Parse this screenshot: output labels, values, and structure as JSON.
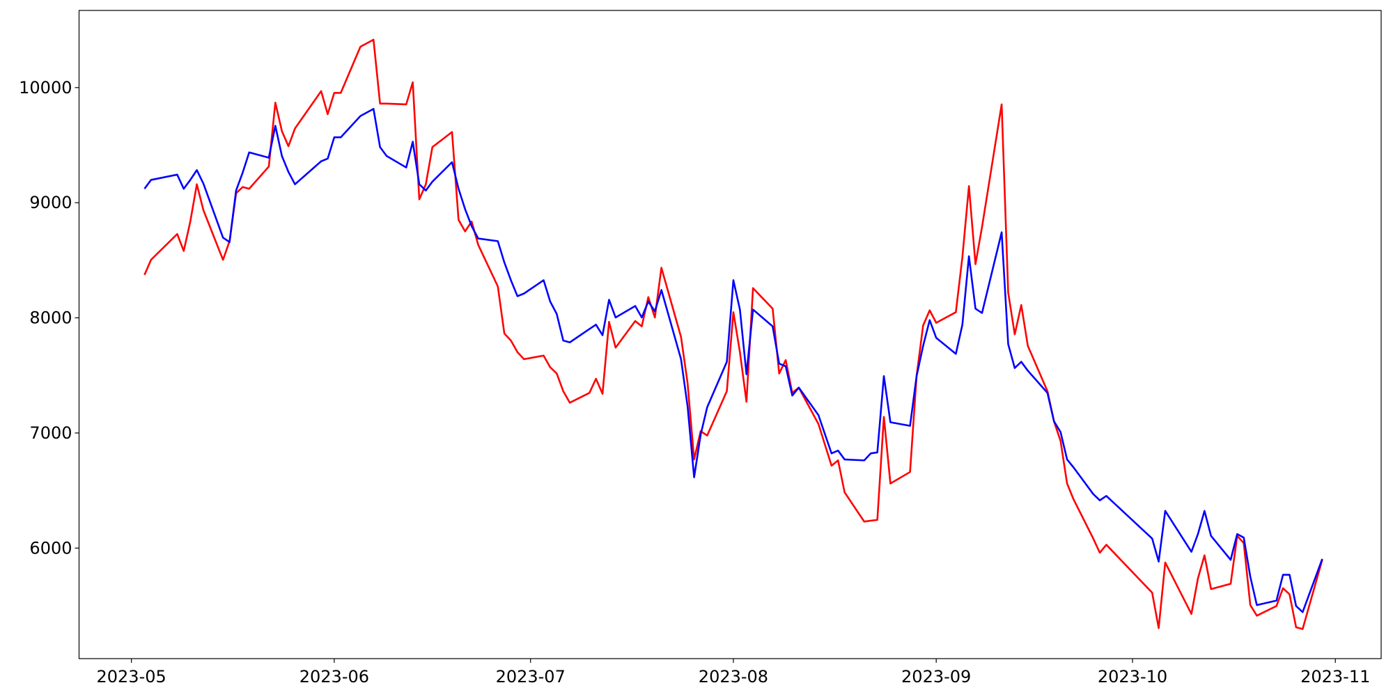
{
  "chart_data": {
    "type": "line",
    "x": [
      "2023-05-03",
      "2023-05-04",
      "2023-05-08",
      "2023-05-09",
      "2023-05-10",
      "2023-05-11",
      "2023-05-12",
      "2023-05-15",
      "2023-05-16",
      "2023-05-17",
      "2023-05-18",
      "2023-05-19",
      "2023-05-22",
      "2023-05-23",
      "2023-05-24",
      "2023-05-25",
      "2023-05-26",
      "2023-05-30",
      "2023-05-31",
      "2023-06-01",
      "2023-06-02",
      "2023-06-05",
      "2023-06-07",
      "2023-06-08",
      "2023-06-09",
      "2023-06-12",
      "2023-06-13",
      "2023-06-14",
      "2023-06-15",
      "2023-06-16",
      "2023-06-19",
      "2023-06-20",
      "2023-06-21",
      "2023-06-22",
      "2023-06-23",
      "2023-06-26",
      "2023-06-27",
      "2023-06-28",
      "2023-06-29",
      "2023-06-30",
      "2023-07-03",
      "2023-07-04",
      "2023-07-05",
      "2023-07-06",
      "2023-07-07",
      "2023-07-10",
      "2023-07-11",
      "2023-07-12",
      "2023-07-13",
      "2023-07-14",
      "2023-07-17",
      "2023-07-18",
      "2023-07-19",
      "2023-07-20",
      "2023-07-21",
      "2023-07-24",
      "2023-07-25",
      "2023-07-26",
      "2023-07-27",
      "2023-07-28",
      "2023-07-31",
      "2023-08-01",
      "2023-08-02",
      "2023-08-03",
      "2023-08-04",
      "2023-08-07",
      "2023-08-08",
      "2023-08-09",
      "2023-08-10",
      "2023-08-11",
      "2023-08-14",
      "2023-08-16",
      "2023-08-17",
      "2023-08-18",
      "2023-08-21",
      "2023-08-22",
      "2023-08-23",
      "2023-08-24",
      "2023-08-25",
      "2023-08-28",
      "2023-08-29",
      "2023-08-30",
      "2023-08-31",
      "2023-09-01",
      "2023-09-04",
      "2023-09-05",
      "2023-09-06",
      "2023-09-07",
      "2023-09-08",
      "2023-09-11",
      "2023-09-12",
      "2023-09-13",
      "2023-09-14",
      "2023-09-15",
      "2023-09-18",
      "2023-09-19",
      "2023-09-20",
      "2023-09-21",
      "2023-09-22",
      "2023-09-25",
      "2023-09-26",
      "2023-09-27",
      "2023-10-04",
      "2023-10-05",
      "2023-10-06",
      "2023-10-10",
      "2023-10-11",
      "2023-10-12",
      "2023-10-13",
      "2023-10-16",
      "2023-10-17",
      "2023-10-18",
      "2023-10-19",
      "2023-10-20",
      "2023-10-23",
      "2023-10-24",
      "2023-10-25",
      "2023-10-26",
      "2023-10-27",
      "2023-10-30"
    ],
    "series": [
      {
        "color": "#ff0000",
        "values": [
          8373,
          8504,
          8728,
          8581,
          8836,
          9160,
          8936,
          8504,
          8666,
          9082,
          9136,
          9121,
          9314,
          9869,
          9622,
          9491,
          9645,
          9969,
          9769,
          9954,
          9954,
          10355,
          10416,
          9861,
          9861,
          9854,
          10046,
          9029,
          9160,
          9483,
          9614,
          8851,
          8751,
          8836,
          8635,
          8273,
          7864,
          7803,
          7702,
          7641,
          7672,
          7571,
          7517,
          7363,
          7263,
          7348,
          7471,
          7340,
          7965,
          7741,
          7972,
          7926,
          8180,
          8003,
          8435,
          7834,
          7433,
          6770,
          7016,
          6978,
          7363,
          8049,
          7702,
          7271,
          8258,
          8080,
          7517,
          7633,
          7348,
          7394,
          7078,
          6716,
          6762,
          6484,
          6230,
          6238,
          6245,
          7140,
          6561,
          6661,
          7494,
          7934,
          8065,
          7957,
          8049,
          8527,
          9144,
          8466,
          8789,
          9854,
          8219,
          7857,
          8111,
          7757,
          7363,
          7101,
          6931,
          6561,
          6422,
          6083,
          5960,
          6029,
          5613,
          5305,
          5875,
          5428,
          5737,
          5937,
          5644,
          5690,
          6106,
          6044,
          5505,
          5413,
          5497,
          5652,
          5598,
          5312,
          5297,
          5899
        ]
      },
      {
        "color": "#0000ff",
        "values": [
          9121,
          9198,
          9244,
          9121,
          9198,
          9283,
          9167,
          8697,
          8658,
          9106,
          9260,
          9437,
          9391,
          9668,
          9406,
          9268,
          9160,
          9360,
          9383,
          9568,
          9568,
          9753,
          9815,
          9483,
          9406,
          9306,
          9530,
          9160,
          9106,
          9183,
          9352,
          9121,
          8944,
          8797,
          8689,
          8666,
          8481,
          8327,
          8188,
          8211,
          8327,
          8142,
          8034,
          7803,
          7787,
          7903,
          7941,
          7849,
          8157,
          8003,
          8103,
          8003,
          8142,
          8057,
          8242,
          7641,
          7232,
          6615,
          6985,
          7224,
          7618,
          8327,
          8072,
          7510,
          8072,
          7926,
          7602,
          7579,
          7325,
          7394,
          7155,
          6823,
          6847,
          6770,
          6762,
          6823,
          6831,
          7494,
          7093,
          7062,
          7494,
          7757,
          7980,
          7826,
          7687,
          7941,
          8535,
          8080,
          8042,
          8743,
          7772,
          7564,
          7618,
          7541,
          7348,
          7101,
          7008,
          6770,
          6700,
          6469,
          6415,
          6453,
          6083,
          5883,
          6323,
          5968,
          6122,
          6323,
          6106,
          5898,
          6122,
          6091,
          5752,
          5505,
          5544,
          5768,
          5768,
          5497,
          5444,
          5906
        ]
      }
    ],
    "xlim": [
      "2023-04-23",
      "2023-11-08"
    ],
    "xticks": [
      {
        "value": "2023-05-01",
        "label": "2023-05"
      },
      {
        "value": "2023-06-01",
        "label": "2023-06"
      },
      {
        "value": "2023-07-01",
        "label": "2023-07"
      },
      {
        "value": "2023-08-01",
        "label": "2023-08"
      },
      {
        "value": "2023-09-01",
        "label": "2023-09"
      },
      {
        "value": "2023-10-01",
        "label": "2023-10"
      },
      {
        "value": "2023-11-01",
        "label": "2023-11"
      }
    ],
    "ylim": [
      5040,
      10670
    ],
    "yticks": [
      6000,
      7000,
      8000,
      9000,
      10000
    ]
  }
}
